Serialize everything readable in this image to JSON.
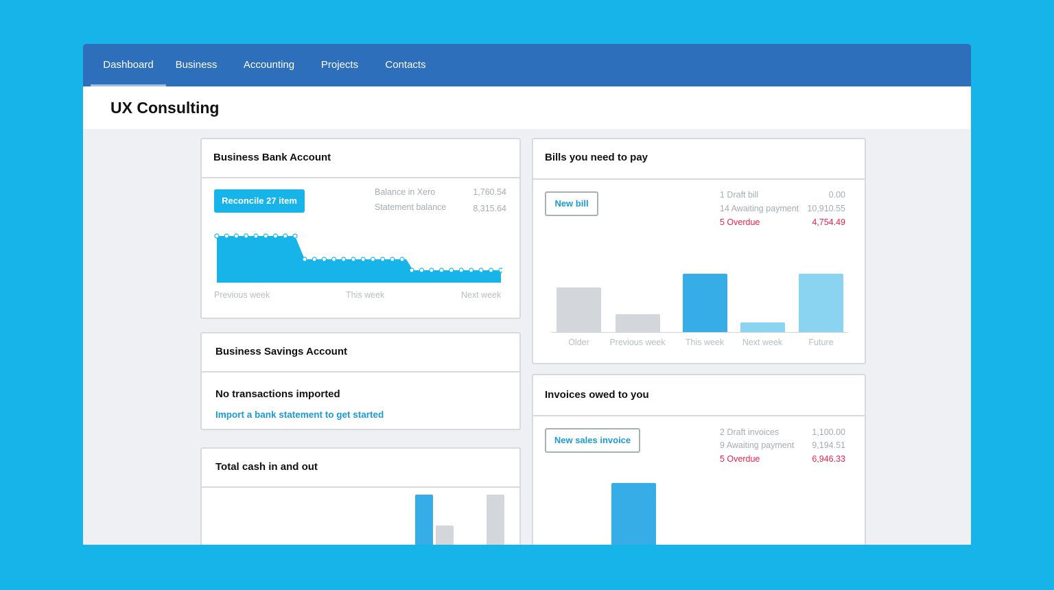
{
  "nav": {
    "items": [
      {
        "label": "Dashboard",
        "active": true
      },
      {
        "label": "Business"
      },
      {
        "label": "Accounting"
      },
      {
        "label": "Projects"
      },
      {
        "label": "Contacts"
      }
    ]
  },
  "page": {
    "title": "UX Consulting"
  },
  "bank_account": {
    "title": "Business Bank Account",
    "reconcile_label": "Reconcile 27 item",
    "balance_xero_label": "Balance in Xero",
    "balance_xero_value": "1,760.54",
    "statement_label": "Statement balance",
    "statement_value": "8,315.64",
    "axis": [
      "Previous week",
      "This week",
      "Next week"
    ]
  },
  "savings_account": {
    "title": "Business Savings Account",
    "message": "No transactions imported",
    "link": "Import a bank statement to get started"
  },
  "cash": {
    "title": "Total cash in and out"
  },
  "bills": {
    "title": "Bills you need to pay",
    "button": "New bill",
    "rows": [
      {
        "label": "1 Draft bill",
        "value": "0.00"
      },
      {
        "label": "14 Awaiting payment",
        "value": "10,910.55"
      },
      {
        "label": "5 Overdue",
        "value": "4,754.49"
      }
    ],
    "categories": [
      "Older",
      "Previous week",
      "This week",
      "Next week",
      "Future"
    ]
  },
  "invoices": {
    "title": "Invoices owed to you",
    "button": "New sales invoice",
    "rows": [
      {
        "label": "2 Draft invoices",
        "value": "1,100.00"
      },
      {
        "label": "9 Awaiting payment",
        "value": "9,194.51"
      },
      {
        "label": "5 Overdue",
        "value": "6,946.33"
      }
    ]
  },
  "colors": {
    "background": "#17b4e9",
    "nav": "#2d6fba",
    "accent": "#17b4e9",
    "overdue": "#ee1f4a",
    "bar_blue": "#36ade6",
    "bar_light": "#8ad4f2",
    "bar_grey": "#d3d6da"
  }
}
